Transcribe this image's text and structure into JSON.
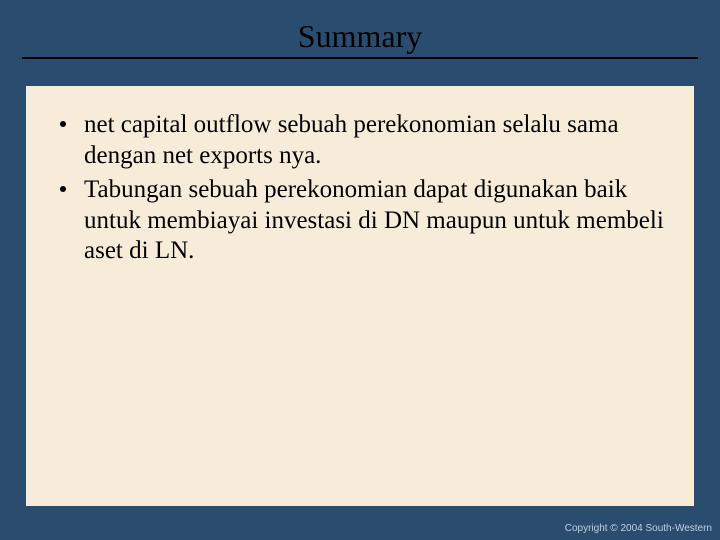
{
  "colors": {
    "slide_bg": "#2a4c6f",
    "content_bg": "#f6ecd9",
    "title_color": "#000000",
    "underline_color": "#000000",
    "body_text": "#000000",
    "bullet_dot": "#000000",
    "copyright_color": "#c2cfdc"
  },
  "typography": {
    "title_fontsize": 32,
    "body_fontsize": 25,
    "copyright_fontsize": 10
  },
  "title": "Summary",
  "bullets": [
    "net capital outflow sebuah perekonomian selalu sama dengan net exports nya.",
    "Tabungan sebuah perekonomian dapat digunakan baik untuk membiayai investasi di DN maupun untuk membeli aset di LN."
  ],
  "copyright": "Copyright © 2004 South-Western"
}
